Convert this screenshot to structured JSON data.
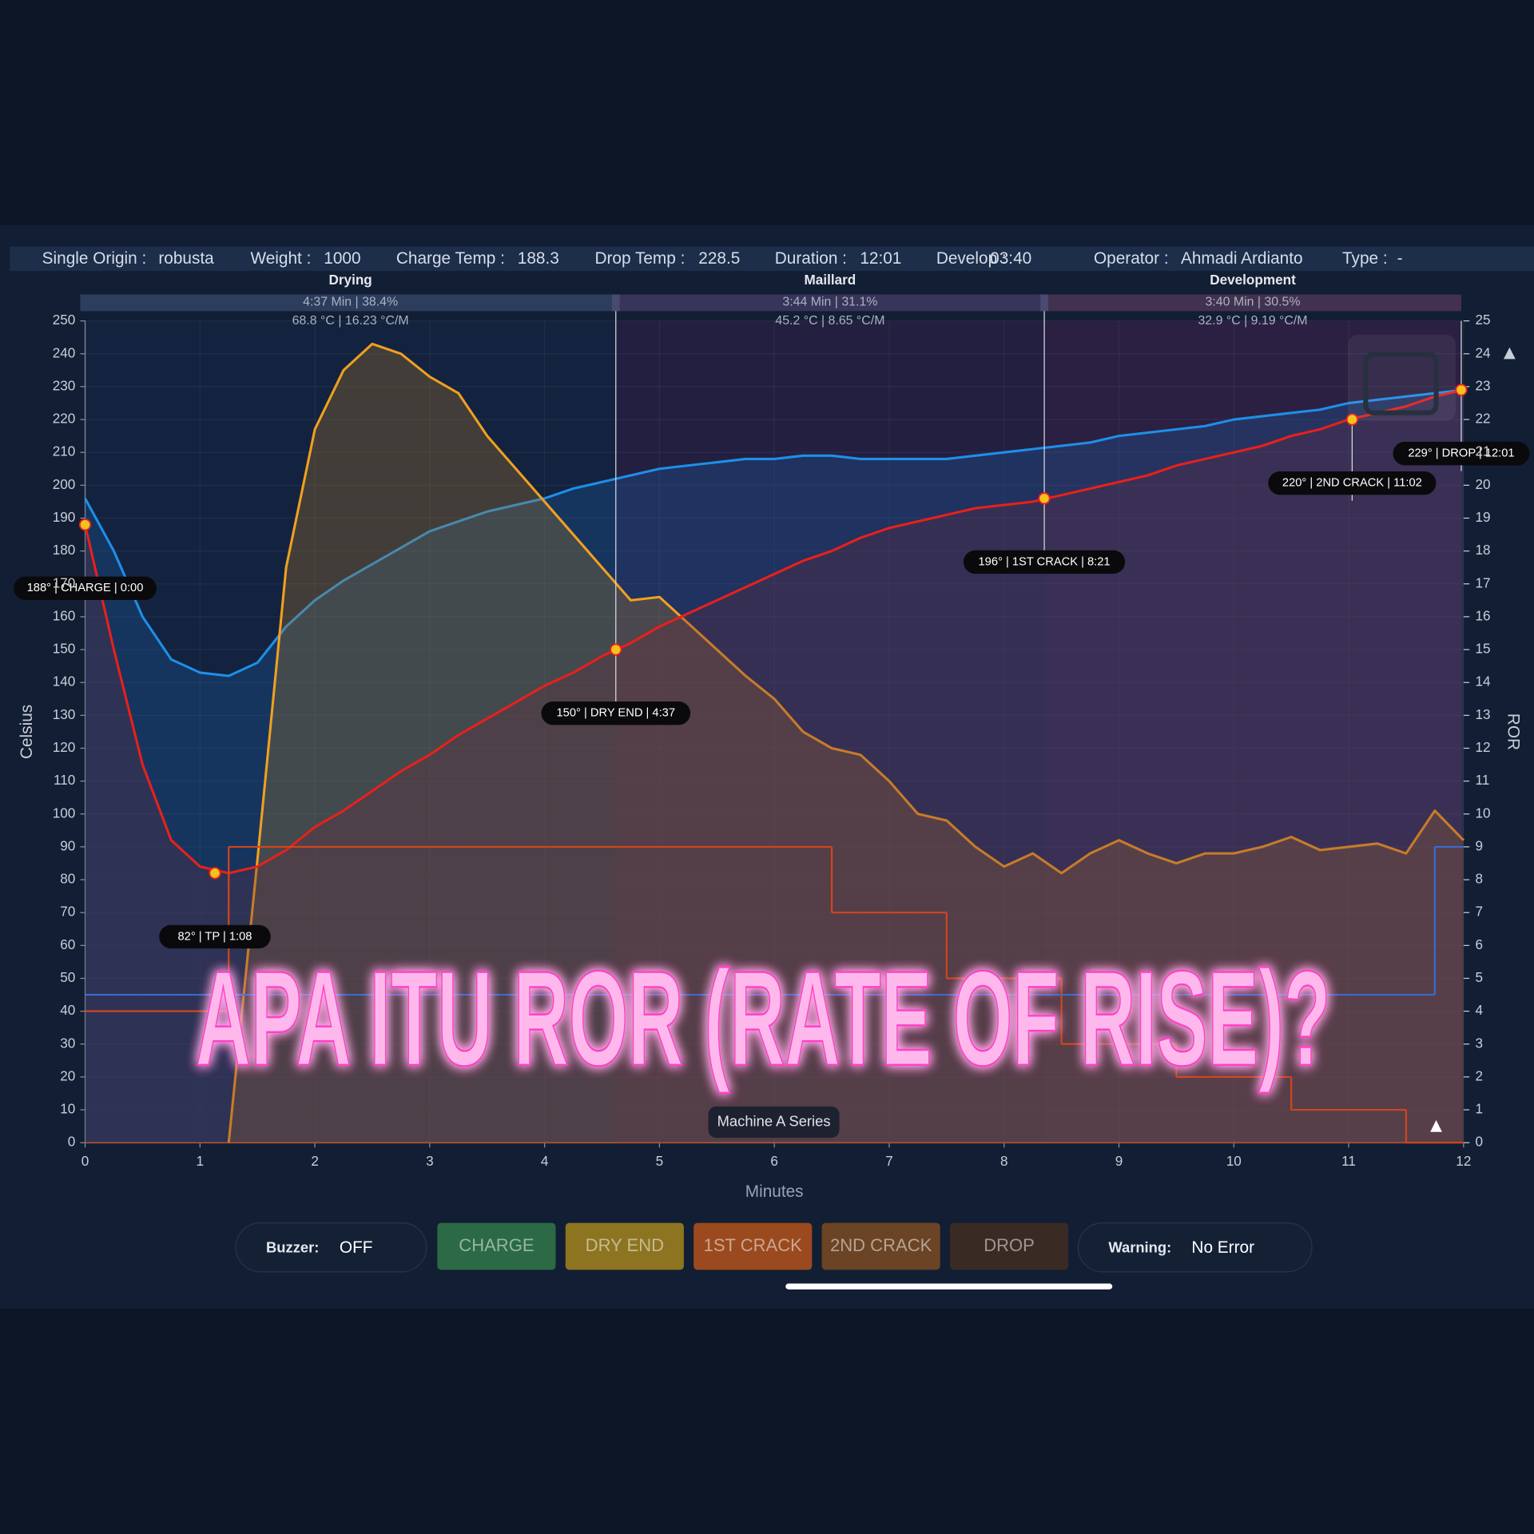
{
  "header": {
    "fields": [
      {
        "label": "Single Origin :",
        "value": "robusta"
      },
      {
        "label": "Weight :",
        "value": "1000"
      },
      {
        "label": "Charge Temp :",
        "value": "188.3"
      },
      {
        "label": "Drop Temp :",
        "value": "228.5"
      },
      {
        "label": "Duration :",
        "value": "12:01"
      },
      {
        "label": "Develop :",
        "value": "03:40"
      },
      {
        "label": "Operator :",
        "value": "Ahmadi Ardianto"
      },
      {
        "label": "Type :",
        "value": "-"
      }
    ]
  },
  "chart_data": {
    "type": "line",
    "phases": [
      {
        "name": "Drying",
        "time": "4:37 Min | 38.4%",
        "temp": "68.8 °C | 16.23 °C/M"
      },
      {
        "name": "Maillard",
        "time": "3:44 Min | 31.1%",
        "temp": "45.2 °C | 8.65 °C/M"
      },
      {
        "name": "Development",
        "time": "3:40 Min | 30.5%",
        "temp": "32.9 °C | 9.19 °C/M"
      }
    ],
    "ylabel": "Celsius",
    "y2label": "ROR",
    "xlabel": "Minutes",
    "xlim": [
      0,
      12
    ],
    "xticks": [
      0,
      1,
      2,
      3,
      4,
      5,
      6,
      7,
      8,
      9,
      10,
      11,
      12
    ],
    "ylim": [
      0,
      250
    ],
    "yticks": [
      0,
      10,
      20,
      30,
      40,
      50,
      60,
      70,
      80,
      90,
      100,
      110,
      120,
      130,
      140,
      150,
      160,
      170,
      180,
      190,
      200,
      210,
      220,
      230,
      240,
      250
    ],
    "y2lim": [
      0,
      25
    ],
    "y2ticks": [
      0,
      1,
      2,
      3,
      4,
      5,
      6,
      7,
      8,
      9,
      10,
      11,
      12,
      13,
      14,
      15,
      16,
      17,
      18,
      19,
      20,
      21,
      22,
      23,
      24,
      25
    ],
    "x": [
      0,
      0.25,
      0.5,
      0.75,
      1,
      1.25,
      1.5,
      1.75,
      2,
      2.25,
      2.5,
      2.75,
      3,
      3.25,
      3.5,
      3.75,
      4,
      4.25,
      4.5,
      4.75,
      5,
      5.25,
      5.5,
      5.75,
      6,
      6.25,
      6.5,
      6.75,
      7,
      7.25,
      7.5,
      7.75,
      8,
      8.25,
      8.5,
      8.75,
      9,
      9.25,
      9.5,
      9.75,
      10,
      10.25,
      10.5,
      10.75,
      11,
      11.25,
      11.5,
      11.75,
      12
    ],
    "series": [
      {
        "color": "#1e8fe8",
        "area": "#1a5fa8",
        "values": [
          196,
          180,
          160,
          147,
          143,
          142,
          146,
          157,
          165,
          171,
          176,
          181,
          186,
          189,
          192,
          194,
          196,
          199,
          201,
          203,
          205,
          206,
          207,
          208,
          208,
          209,
          209,
          208,
          208,
          208,
          208,
          209,
          210,
          211,
          212,
          213,
          215,
          216,
          217,
          218,
          220,
          221,
          222,
          223,
          225,
          226,
          227,
          228,
          229
        ]
      },
      {
        "color": "#f0a020",
        "area": "#b07a28",
        "axis": "y2",
        "values": [
          null,
          null,
          null,
          null,
          null,
          0,
          8.6,
          17.5,
          21.7,
          23.5,
          24.3,
          24,
          23.3,
          22.8,
          21.5,
          20.5,
          19.5,
          18.5,
          17.5,
          16.5,
          16.6,
          15.8,
          15,
          14.2,
          13.5,
          12.5,
          12,
          11.8,
          11,
          10,
          9.8,
          9,
          8.4,
          8.8,
          8.2,
          8.8,
          9.2,
          8.8,
          8.5,
          8.8,
          8.8,
          9,
          9.3,
          8.9,
          9,
          9.1,
          8.8,
          10.1,
          9.2
        ]
      },
      {
        "color": "#e8201c",
        "area": "#6a2a3c",
        "values": [
          188,
          150,
          115,
          92,
          84,
          82,
          84,
          89,
          96,
          101,
          107,
          113,
          118,
          124,
          129,
          134,
          139,
          143,
          148,
          152,
          157,
          161,
          165,
          169,
          173,
          177,
          180,
          184,
          187,
          189,
          191,
          193,
          194,
          195,
          197,
          199,
          201,
          203,
          206,
          208,
          210,
          212,
          215,
          217,
          220,
          222,
          224,
          227,
          229
        ]
      },
      {
        "color": "#d2451c",
        "step": true,
        "values": [
          40,
          40,
          40,
          40,
          40,
          90,
          90,
          90,
          90,
          90,
          90,
          90,
          90,
          90,
          90,
          90,
          90,
          90,
          90,
          90,
          90,
          90,
          90,
          90,
          90,
          90,
          70,
          70,
          70,
          70,
          50,
          50,
          50,
          50,
          30,
          30,
          30,
          30,
          20,
          20,
          20,
          20,
          10,
          10,
          10,
          10,
          0,
          0,
          0
        ]
      },
      {
        "color": "#3a6ad0",
        "step": true,
        "values": [
          45,
          45,
          45,
          45,
          45,
          45,
          45,
          45,
          45,
          45,
          45,
          45,
          45,
          45,
          45,
          45,
          45,
          45,
          45,
          45,
          45,
          45,
          45,
          45,
          45,
          45,
          45,
          45,
          45,
          45,
          45,
          45,
          45,
          45,
          45,
          45,
          45,
          45,
          45,
          45,
          45,
          45,
          45,
          45,
          45,
          45,
          45,
          90,
          90
        ]
      }
    ],
    "annotations": [
      {
        "text": "188° | CHARGE | 0:00",
        "x": 0,
        "y": 188
      },
      {
        "text": "82° | TP | 1:08",
        "x": 1.13,
        "y": 82
      },
      {
        "text": "150° | DRY END | 4:37",
        "x": 4.62,
        "y": 150
      },
      {
        "text": "196° | 1ST CRACK | 8:21",
        "x": 8.35,
        "y": 196
      },
      {
        "text": "220° | 2ND CRACK | 11:02",
        "x": 11.03,
        "y": 220
      },
      {
        "text": "229° | DROP | 12:01",
        "x": 11.98,
        "y": 229
      }
    ],
    "series_label": "Machine A Series"
  },
  "controls": {
    "buzzer": {
      "label": "Buzzer:",
      "value": "OFF"
    },
    "buttons": [
      {
        "label": "CHARGE",
        "color": "#2b6a44"
      },
      {
        "label": "DRY END",
        "color": "#8c7420"
      },
      {
        "label": "1ST CRACK",
        "color": "#9a4a1e"
      },
      {
        "label": "2ND CRACK",
        "color": "#6a4424"
      },
      {
        "label": "DROP",
        "color": "#3a2a24"
      }
    ],
    "warning": {
      "label": "Warning:",
      "value": "No Error"
    }
  },
  "overlay": {
    "title": "APA ITU ROR (RATE OF RISE)?"
  }
}
